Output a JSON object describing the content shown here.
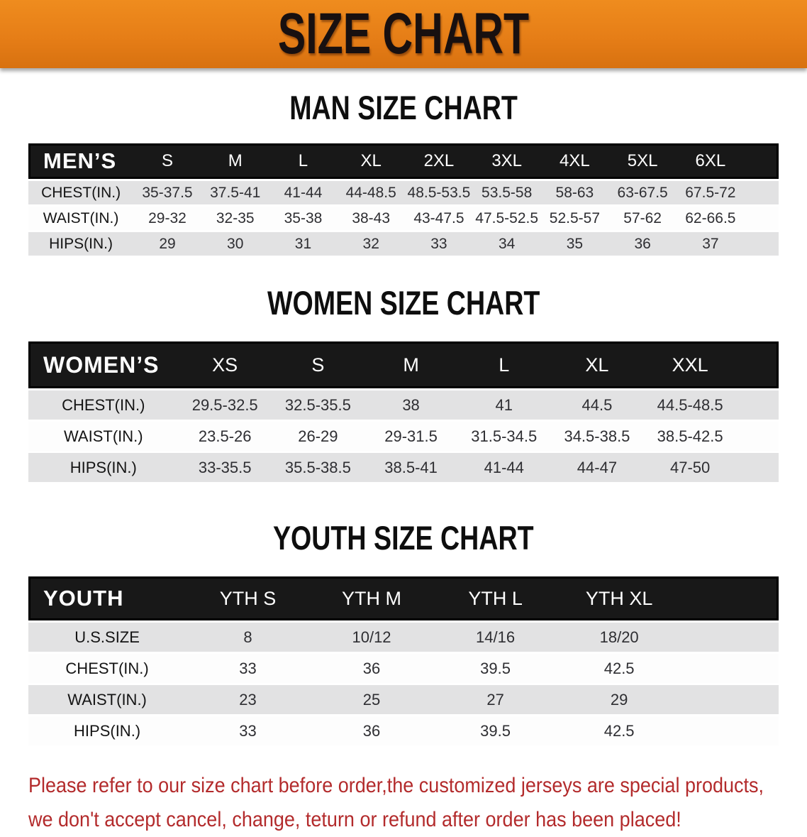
{
  "banner": {
    "title": "SIZE CHART",
    "bg_color": "#e67e17",
    "text_color": "#181010"
  },
  "sections": [
    {
      "heading": "MAN SIZE CHART",
      "corner_label": "MEN’S",
      "columns": [
        "S",
        "M",
        "L",
        "XL",
        "2XL",
        "3XL",
        "4XL",
        "5XL",
        "6XL"
      ],
      "rows": [
        {
          "label": "CHEST(IN.)",
          "values": [
            "35-37.5",
            "37.5-41",
            "41-44",
            "44-48.5",
            "48.5-53.5",
            "53.5-58",
            "58-63",
            "63-67.5",
            "67.5-72"
          ]
        },
        {
          "label": "WAIST(IN.)",
          "values": [
            "29-32",
            "32-35",
            "35-38",
            "38-43",
            "43-47.5",
            "47.5-52.5",
            "52.5-57",
            "57-62",
            "62-66.5"
          ]
        },
        {
          "label": "HIPS(IN.)",
          "values": [
            "29",
            "30",
            "31",
            "32",
            "33",
            "34",
            "35",
            "36",
            "37"
          ]
        }
      ]
    },
    {
      "heading": "WOMEN SIZE CHART",
      "corner_label": "WOMEN’S",
      "columns": [
        "XS",
        "S",
        "M",
        "L",
        "XL",
        "XXL"
      ],
      "rows": [
        {
          "label": "CHEST(IN.)",
          "values": [
            "29.5-32.5",
            "32.5-35.5",
            "38",
            "41",
            "44.5",
            "44.5-48.5"
          ]
        },
        {
          "label": "WAIST(IN.)",
          "values": [
            "23.5-26",
            "26-29",
            "29-31.5",
            "31.5-34.5",
            "34.5-38.5",
            "38.5-42.5"
          ]
        },
        {
          "label": "HIPS(IN.)",
          "values": [
            "33-35.5",
            "35.5-38.5",
            "38.5-41",
            "41-44",
            "44-47",
            "47-50"
          ]
        }
      ]
    },
    {
      "heading": "YOUTH SIZE CHART",
      "corner_label": "YOUTH",
      "columns": [
        "YTH S",
        "YTH M",
        "YTH L",
        "YTH XL"
      ],
      "rows": [
        {
          "label": "U.S.SIZE",
          "values": [
            "8",
            "10/12",
            "14/16",
            "18/20"
          ]
        },
        {
          "label": "CHEST(IN.)",
          "values": [
            "33",
            "36",
            "39.5",
            "42.5"
          ]
        },
        {
          "label": "WAIST(IN.)",
          "values": [
            "23",
            "25",
            "27",
            "29"
          ]
        },
        {
          "label": "HIPS(IN.)",
          "values": [
            "33",
            "36",
            "39.5",
            "42.5"
          ]
        }
      ]
    }
  ],
  "disclaimer": {
    "line1": "Please refer to our size chart before order,the customized jerseys are special products,",
    "line2": "we don't accept cancel, change, teturn or refund after order has been placed!",
    "color": "#b32b2c"
  },
  "colors": {
    "banner_orange": "#e67e17",
    "table_header_black": "#181818",
    "row_gray": "#e2e2e3",
    "row_white": "#fdfdfd",
    "disclaimer_red": "#b32b2c"
  }
}
